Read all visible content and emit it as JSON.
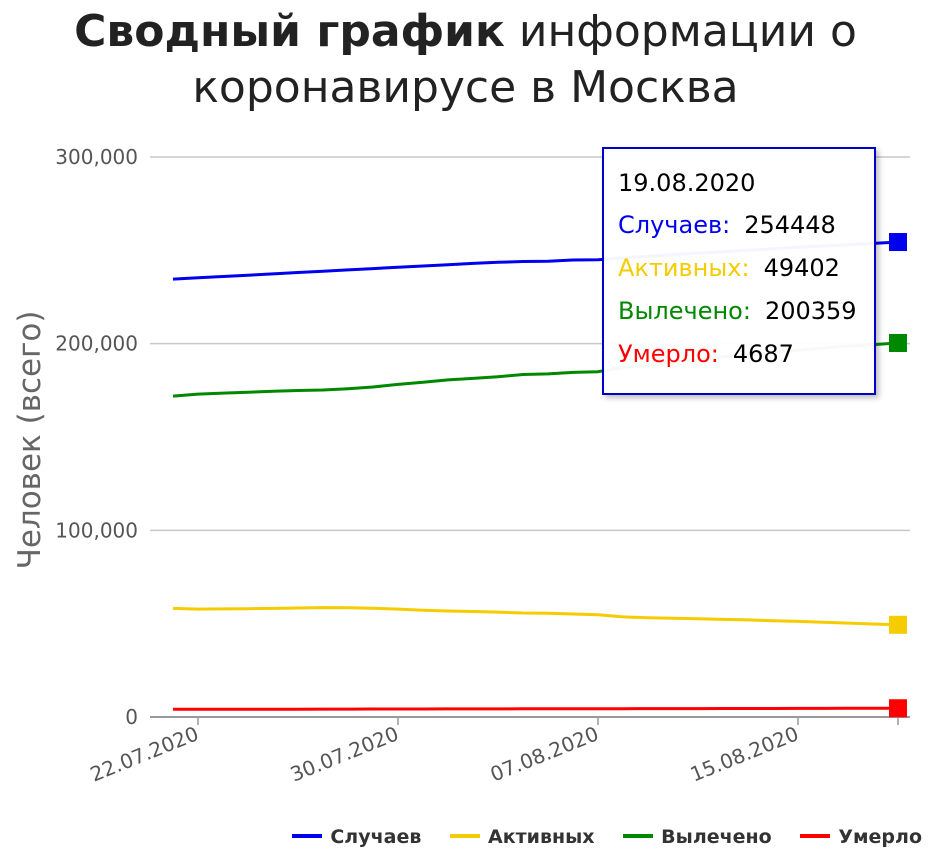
{
  "title": {
    "bold": "Сводный график",
    "rest_line1": " информации о",
    "line2": "коронавирусе в Москва"
  },
  "colors": {
    "cases": "#0000ee",
    "active": "#f5cc00",
    "recovered": "#008800",
    "deaths": "#ff0000",
    "grid": "#c8c8c8",
    "axis_text": "#555555"
  },
  "tooltip": {
    "date": "19.08.2020",
    "rows": [
      {
        "label": "Случаев:",
        "value": "254448",
        "color": "#0000ee"
      },
      {
        "label": "Активных:",
        "value": "49402",
        "color": "#f5cc00"
      },
      {
        "label": "Вылечено:",
        "value": "200359",
        "color": "#008800"
      },
      {
        "label": "Умерло:",
        "value": "4687",
        "color": "#ff0000"
      }
    ]
  },
  "legend": [
    {
      "label": "Случаев",
      "color": "#0000ee"
    },
    {
      "label": "Активных",
      "color": "#f5cc00"
    },
    {
      "label": "Вылечено",
      "color": "#008800"
    },
    {
      "label": "Умерло",
      "color": "#ff0000"
    }
  ],
  "chart_data": {
    "type": "line",
    "title": "Сводный график информации о коронавирусе в Москва",
    "ylabel": "Человек (всего)",
    "xlabel": "",
    "ylim": [
      0,
      300000
    ],
    "yticks": [
      0,
      100000,
      200000,
      300000
    ],
    "ytick_labels": [
      "0",
      "100,000",
      "200,000",
      "300,000"
    ],
    "xtick_labels": [
      "22.07.2020",
      "30.07.2020",
      "07.08.2020",
      "15.08.2020"
    ],
    "x": [
      "21.07.2020",
      "22.07.2020",
      "23.07.2020",
      "24.07.2020",
      "25.07.2020",
      "26.07.2020",
      "27.07.2020",
      "28.07.2020",
      "29.07.2020",
      "30.07.2020",
      "31.07.2020",
      "01.08.2020",
      "02.08.2020",
      "03.08.2020",
      "04.08.2020",
      "05.08.2020",
      "06.08.2020",
      "07.08.2020",
      "08.08.2020",
      "09.08.2020",
      "10.08.2020",
      "11.08.2020",
      "12.08.2020",
      "13.08.2020",
      "14.08.2020",
      "15.08.2020",
      "16.08.2020",
      "17.08.2020",
      "18.08.2020",
      "19.08.2020"
    ],
    "series": [
      {
        "name": "Случаев",
        "color": "#0000ee",
        "values": [
          234600,
          235300,
          236000,
          236700,
          237400,
          238100,
          238800,
          239500,
          240200,
          240900,
          241600,
          242300,
          243000,
          243600,
          244000,
          244100,
          244800,
          245000,
          245900,
          246800,
          247600,
          248400,
          249200,
          250000,
          250800,
          251600,
          252300,
          253000,
          253700,
          254448
        ]
      },
      {
        "name": "Активных",
        "color": "#f5cc00",
        "values": [
          58200,
          57800,
          57900,
          58000,
          58200,
          58400,
          58600,
          58500,
          58300,
          57800,
          57200,
          56800,
          56500,
          56200,
          55700,
          55600,
          55200,
          54800,
          53600,
          53200,
          52900,
          52600,
          52300,
          52000,
          51600,
          51200,
          50800,
          50300,
          49800,
          49402
        ]
      },
      {
        "name": "Вылечено",
        "color": "#008800",
        "values": [
          171900,
          173000,
          173500,
          174000,
          174500,
          174900,
          175200,
          175900,
          176800,
          178200,
          179300,
          180600,
          181400,
          182300,
          183500,
          183800,
          184600,
          185000,
          187300,
          188500,
          190000,
          191500,
          193000,
          194000,
          195300,
          196500,
          197600,
          198700,
          199500,
          200359
        ]
      },
      {
        "name": "Умерло",
        "color": "#ff0000",
        "values": [
          4100,
          4120,
          4140,
          4160,
          4180,
          4200,
          4220,
          4240,
          4260,
          4280,
          4300,
          4320,
          4340,
          4360,
          4380,
          4400,
          4420,
          4440,
          4460,
          4480,
          4500,
          4520,
          4540,
          4560,
          4580,
          4600,
          4620,
          4640,
          4660,
          4687
        ]
      }
    ],
    "grid": true,
    "legend_position": "bottom-right"
  }
}
